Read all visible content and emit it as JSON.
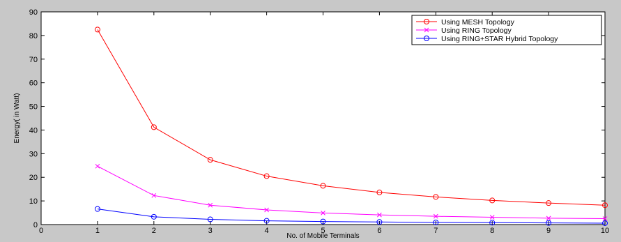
{
  "chart_data": {
    "type": "line",
    "title": "",
    "xlabel": "No. of Mobile Terminals",
    "ylabel": "Energy( in Watt)",
    "xlim": [
      0,
      10
    ],
    "ylim": [
      0,
      90
    ],
    "xticks": [
      0,
      1,
      2,
      3,
      4,
      5,
      6,
      7,
      8,
      9,
      10
    ],
    "yticks": [
      0,
      10,
      20,
      30,
      40,
      50,
      60,
      70,
      80,
      90
    ],
    "grid": false,
    "legend_position": "top-right",
    "x": [
      1,
      2,
      3,
      4,
      5,
      6,
      7,
      8,
      9,
      10
    ],
    "series": [
      {
        "name": "Using MESH Topology",
        "color": "#ff0000",
        "marker": "circle",
        "values": [
          82.5,
          41.2,
          27.4,
          20.5,
          16.4,
          13.6,
          11.7,
          10.2,
          9.1,
          8.2
        ]
      },
      {
        "name": "Using RING Topology",
        "color": "#ff00ff",
        "marker": "x",
        "values": [
          24.7,
          12.3,
          8.2,
          6.2,
          4.9,
          4.1,
          3.5,
          3.1,
          2.7,
          2.5
        ]
      },
      {
        "name": "Using RING+STAR Hybrid Topology",
        "color": "#0000ff",
        "marker": "circle",
        "values": [
          6.6,
          3.3,
          2.2,
          1.6,
          1.3,
          1.1,
          0.9,
          0.8,
          0.7,
          0.6
        ]
      }
    ]
  }
}
